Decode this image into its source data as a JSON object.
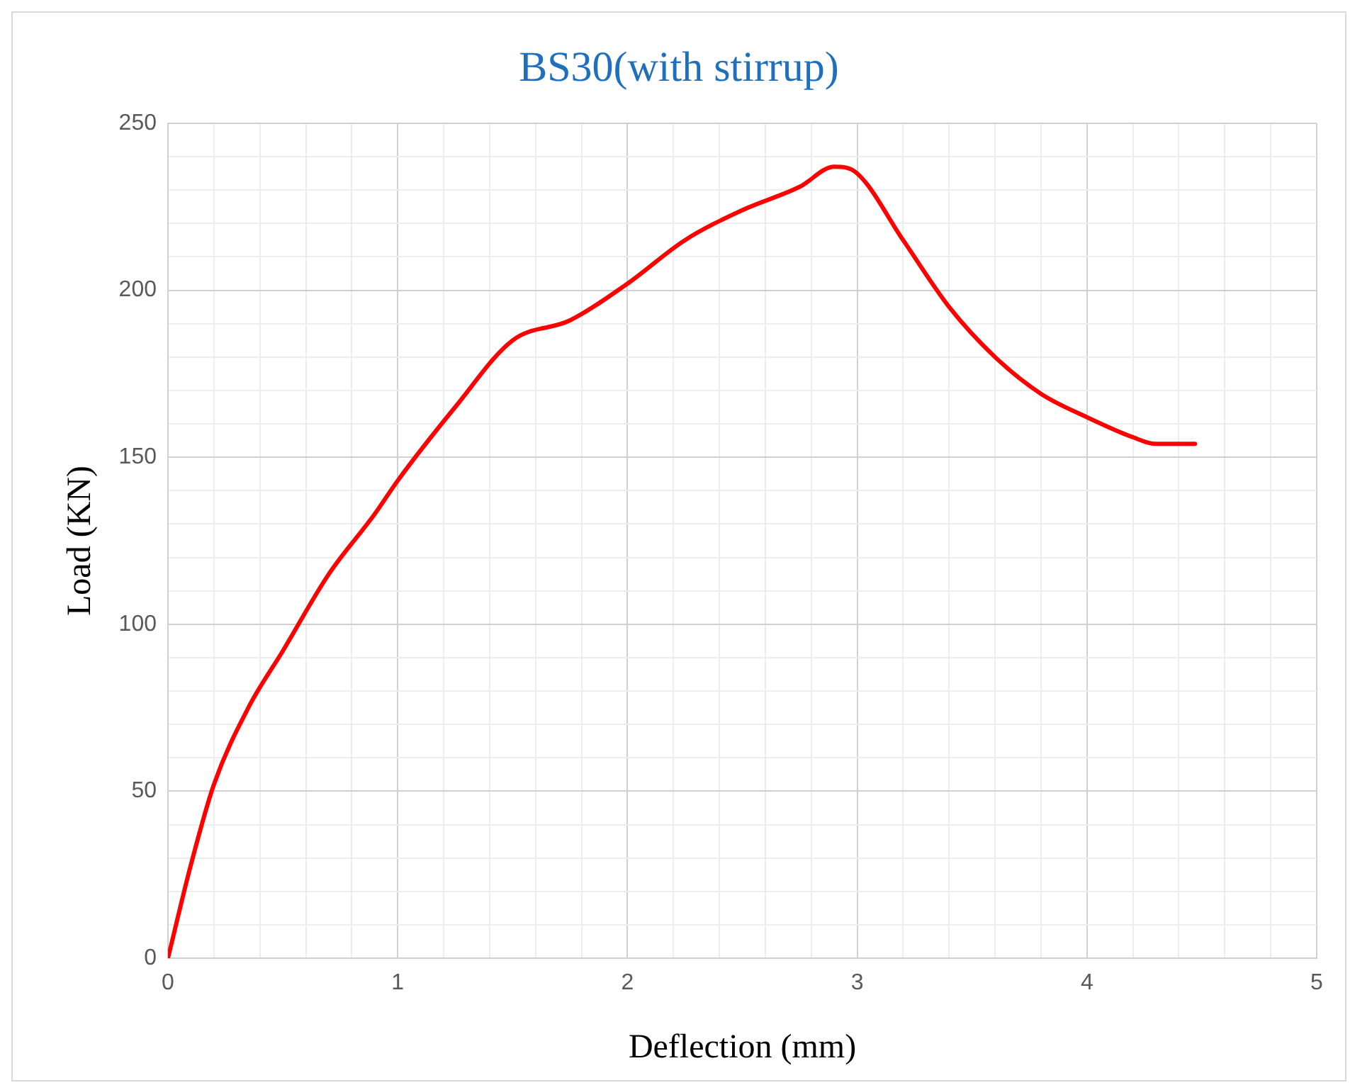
{
  "chart_data": {
    "type": "line",
    "title": "BS30(with stirrup)",
    "xlabel": "Deflection (mm)",
    "ylabel": "Load (KN)",
    "x": [
      0,
      0.1,
      0.2,
      0.35,
      0.5,
      0.7,
      0.9,
      1.0,
      1.25,
      1.5,
      1.75,
      2.0,
      2.25,
      2.5,
      2.75,
      2.9,
      3.0,
      3.2,
      3.4,
      3.6,
      3.8,
      4.0,
      4.2,
      4.3,
      4.47
    ],
    "series": [
      {
        "color": "#ff0000",
        "values": [
          0,
          28,
          52,
          75,
          92,
          115,
          133,
          143,
          165,
          185,
          191,
          202,
          215,
          224,
          231,
          237,
          235,
          215,
          195,
          180,
          169,
          162,
          156,
          154,
          154
        ]
      }
    ],
    "xlim": [
      0,
      5
    ],
    "xticks": [
      0,
      {
        "value": 0.2,
        "label": null
      },
      {
        "value": 0.4,
        "label": null
      },
      {
        "value": 0.6,
        "label": null
      },
      {
        "value": 0.8,
        "label": null
      },
      1,
      {
        "value": 1.2,
        "label": null
      },
      {
        "value": 1.4,
        "label": null
      },
      {
        "value": 1.6,
        "label": null
      },
      {
        "value": 1.8,
        "label": null
      },
      2,
      {
        "value": 2.2,
        "label": null
      },
      {
        "value": 2.4,
        "label": null
      },
      {
        "value": 2.6,
        "label": null
      },
      {
        "value": 2.8,
        "label": null
      },
      3,
      {
        "value": 3.2,
        "label": null
      },
      {
        "value": 3.4,
        "label": null
      },
      {
        "value": 3.6,
        "label": null
      },
      {
        "value": 3.8,
        "label": null
      },
      4,
      {
        "value": 4.2,
        "label": null
      },
      {
        "value": 4.4,
        "label": null
      },
      {
        "value": 4.6,
        "label": null
      },
      {
        "value": 4.8,
        "label": null
      },
      5
    ],
    "ylim": [
      0,
      250
    ],
    "yticks": [
      0,
      {
        "value": 10,
        "label": null
      },
      {
        "value": 20,
        "label": null
      },
      {
        "value": 30,
        "label": null
      },
      {
        "value": 40,
        "label": null
      },
      50,
      {
        "value": 60,
        "label": null
      },
      {
        "value": 70,
        "label": null
      },
      {
        "value": 80,
        "label": null
      },
      {
        "value": 90,
        "label": null
      },
      100,
      {
        "value": 110,
        "label": null
      },
      {
        "value": 120,
        "label": null
      },
      {
        "value": 130,
        "label": null
      },
      {
        "value": 140,
        "label": null
      },
      150,
      {
        "value": 160,
        "label": null
      },
      {
        "value": 170,
        "label": null
      },
      {
        "value": 180,
        "label": null
      },
      {
        "value": 190,
        "label": null
      },
      200,
      {
        "value": 210,
        "label": null
      },
      {
        "value": 220,
        "label": null
      },
      {
        "value": 230,
        "label": null
      },
      {
        "value": 240,
        "label": null
      },
      250
    ],
    "grid": true,
    "legend": false,
    "marker": "none",
    "line_style": "solid"
  }
}
